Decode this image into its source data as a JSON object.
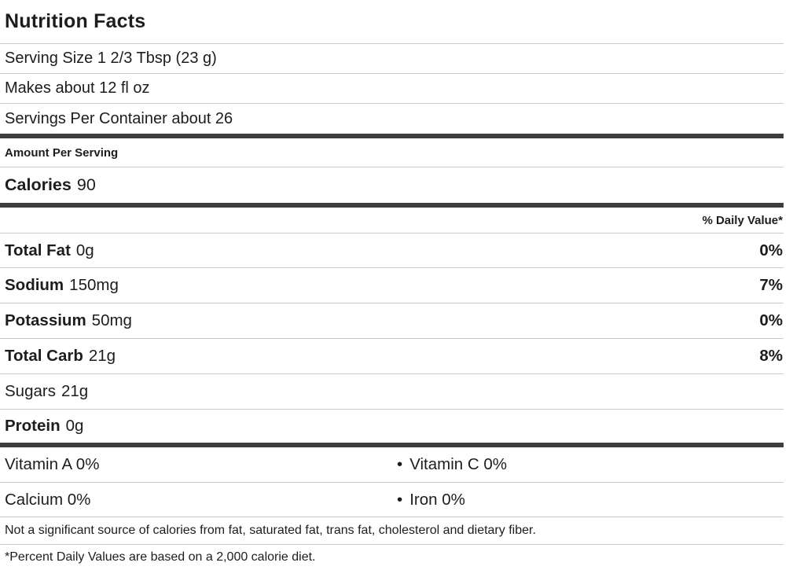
{
  "label": {
    "title": "Nutrition Facts",
    "serving_size": "Serving Size 1 2/3 Tbsp (23 g)",
    "makes_about": "Makes about 12 fl oz",
    "servings_per_container": "Servings Per Container about 26",
    "amount_per_serving": "Amount Per Serving",
    "calories_label": "Calories",
    "calories_value": "90",
    "daily_value_header": "% Daily Value*",
    "nutrients": [
      {
        "name": "Total Fat",
        "amount": "0g",
        "dv": "0%"
      },
      {
        "name": "Sodium",
        "amount": "150mg",
        "dv": "7%"
      },
      {
        "name": "Potassium",
        "amount": "50mg",
        "dv": "0%"
      },
      {
        "name": "Total Carb",
        "amount": "21g",
        "dv": "8%"
      },
      {
        "name": "Sugars",
        "amount": "21g",
        "dv": ""
      },
      {
        "name": "Protein",
        "amount": "0g",
        "dv": ""
      }
    ],
    "vitamins": [
      {
        "left": "Vitamin A 0%",
        "bullet": "•",
        "right": "Vitamin C 0%"
      },
      {
        "left": "Calcium 0%",
        "bullet": "•",
        "right": "Iron 0%"
      }
    ],
    "footnote_sources": "Not a significant source of calories from fat, saturated fat, trans fat, cholesterol and dietary fiber.",
    "footnote_daily_values": "*Percent Daily Values are based on a 2,000 calorie diet.",
    "colors": {
      "text": "#1d1d1d",
      "thick_bar": "#3e3e3e",
      "thin_rule": "#c9c9c9",
      "background": "#ffffff"
    }
  }
}
